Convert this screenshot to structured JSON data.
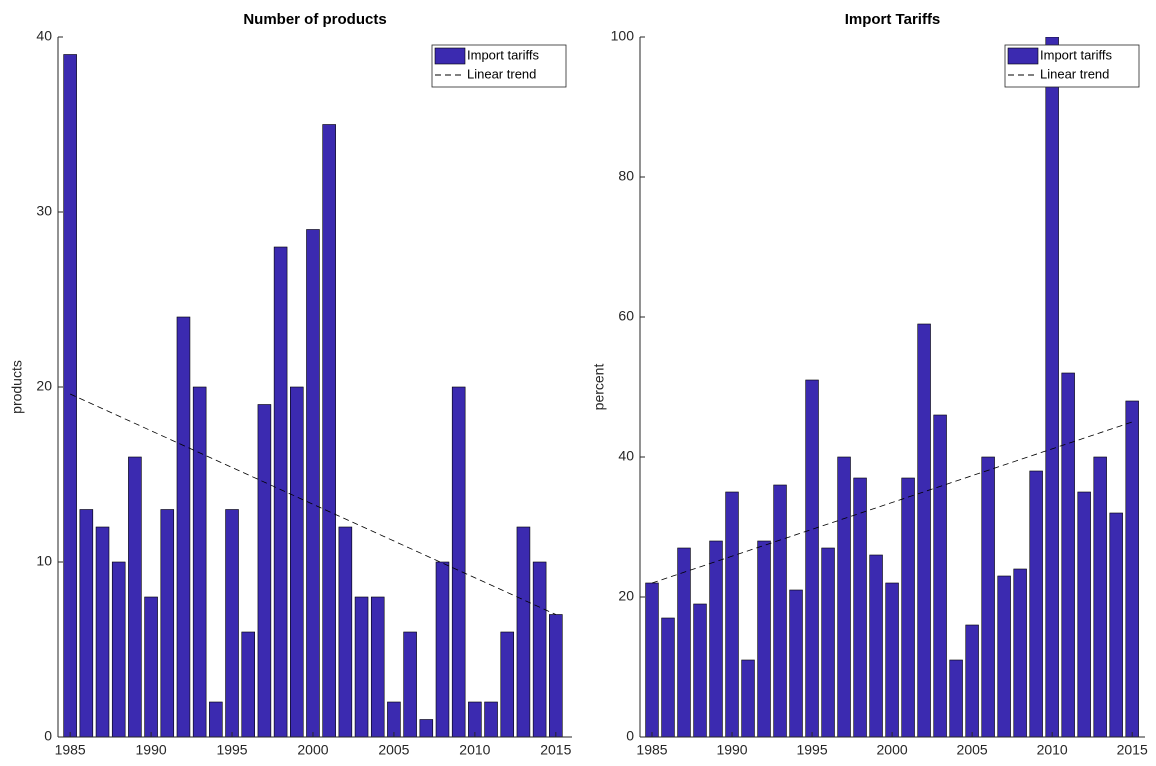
{
  "chart_data": [
    {
      "type": "bar",
      "title": "Number of products",
      "y_label": "products",
      "x": [
        1985,
        1986,
        1987,
        1988,
        1989,
        1990,
        1991,
        1992,
        1993,
        1994,
        1995,
        1996,
        1997,
        1998,
        1999,
        2000,
        2001,
        2002,
        2003,
        2004,
        2005,
        2006,
        2007,
        2008,
        2009,
        2010,
        2011,
        2012,
        2013,
        2014,
        2015
      ],
      "series": [
        {
          "name": "Import tariffs",
          "color": "#3b2ab0",
          "values": [
            39,
            13,
            12,
            10,
            16,
            8,
            13,
            24,
            20,
            2,
            13,
            6,
            19,
            28,
            20,
            29,
            35,
            12,
            8,
            8,
            2,
            6,
            1,
            10,
            20,
            2,
            2,
            6,
            12,
            10,
            7
          ]
        },
        {
          "name": "Linear trend",
          "type": "line",
          "style": "dashed",
          "color": "#000000",
          "x": [
            1985,
            2015
          ],
          "values": [
            19.6,
            7.0
          ]
        }
      ],
      "xlim": [
        1984.25,
        2016
      ],
      "xticks": [
        1985,
        1990,
        1995,
        2000,
        2005,
        2010,
        2015
      ],
      "ylim": [
        0,
        40
      ],
      "yticks": [
        0,
        10,
        20,
        30,
        40
      ],
      "legend": "top-right"
    },
    {
      "type": "bar",
      "title": "Import Tariffs",
      "y_label": "percent",
      "x": [
        1985,
        1986,
        1987,
        1988,
        1989,
        1990,
        1991,
        1992,
        1993,
        1994,
        1995,
        1996,
        1997,
        1998,
        1999,
        2000,
        2001,
        2002,
        2003,
        2004,
        2005,
        2006,
        2007,
        2008,
        2009,
        2010,
        2011,
        2012,
        2013,
        2014,
        2015
      ],
      "series": [
        {
          "name": "Import tariffs",
          "color": "#3b2ab0",
          "values": [
            22,
            17,
            27,
            19,
            28,
            35,
            11,
            28,
            36,
            21,
            51,
            27,
            40,
            37,
            26,
            22,
            37,
            59,
            46,
            11,
            16,
            40,
            23,
            24,
            38,
            100,
            52,
            35,
            40,
            32,
            48
          ]
        },
        {
          "name": "Linear trend",
          "type": "line",
          "style": "dashed",
          "color": "#000000",
          "x": [
            1985,
            2015
          ],
          "values": [
            22,
            45
          ]
        }
      ],
      "xlim": [
        1984.25,
        2015.8
      ],
      "xticks": [
        1985,
        1990,
        1995,
        2000,
        2005,
        2010,
        2015
      ],
      "ylim": [
        0,
        100
      ],
      "yticks": [
        0,
        20,
        40,
        60,
        80,
        100
      ],
      "legend": "top-right"
    }
  ]
}
